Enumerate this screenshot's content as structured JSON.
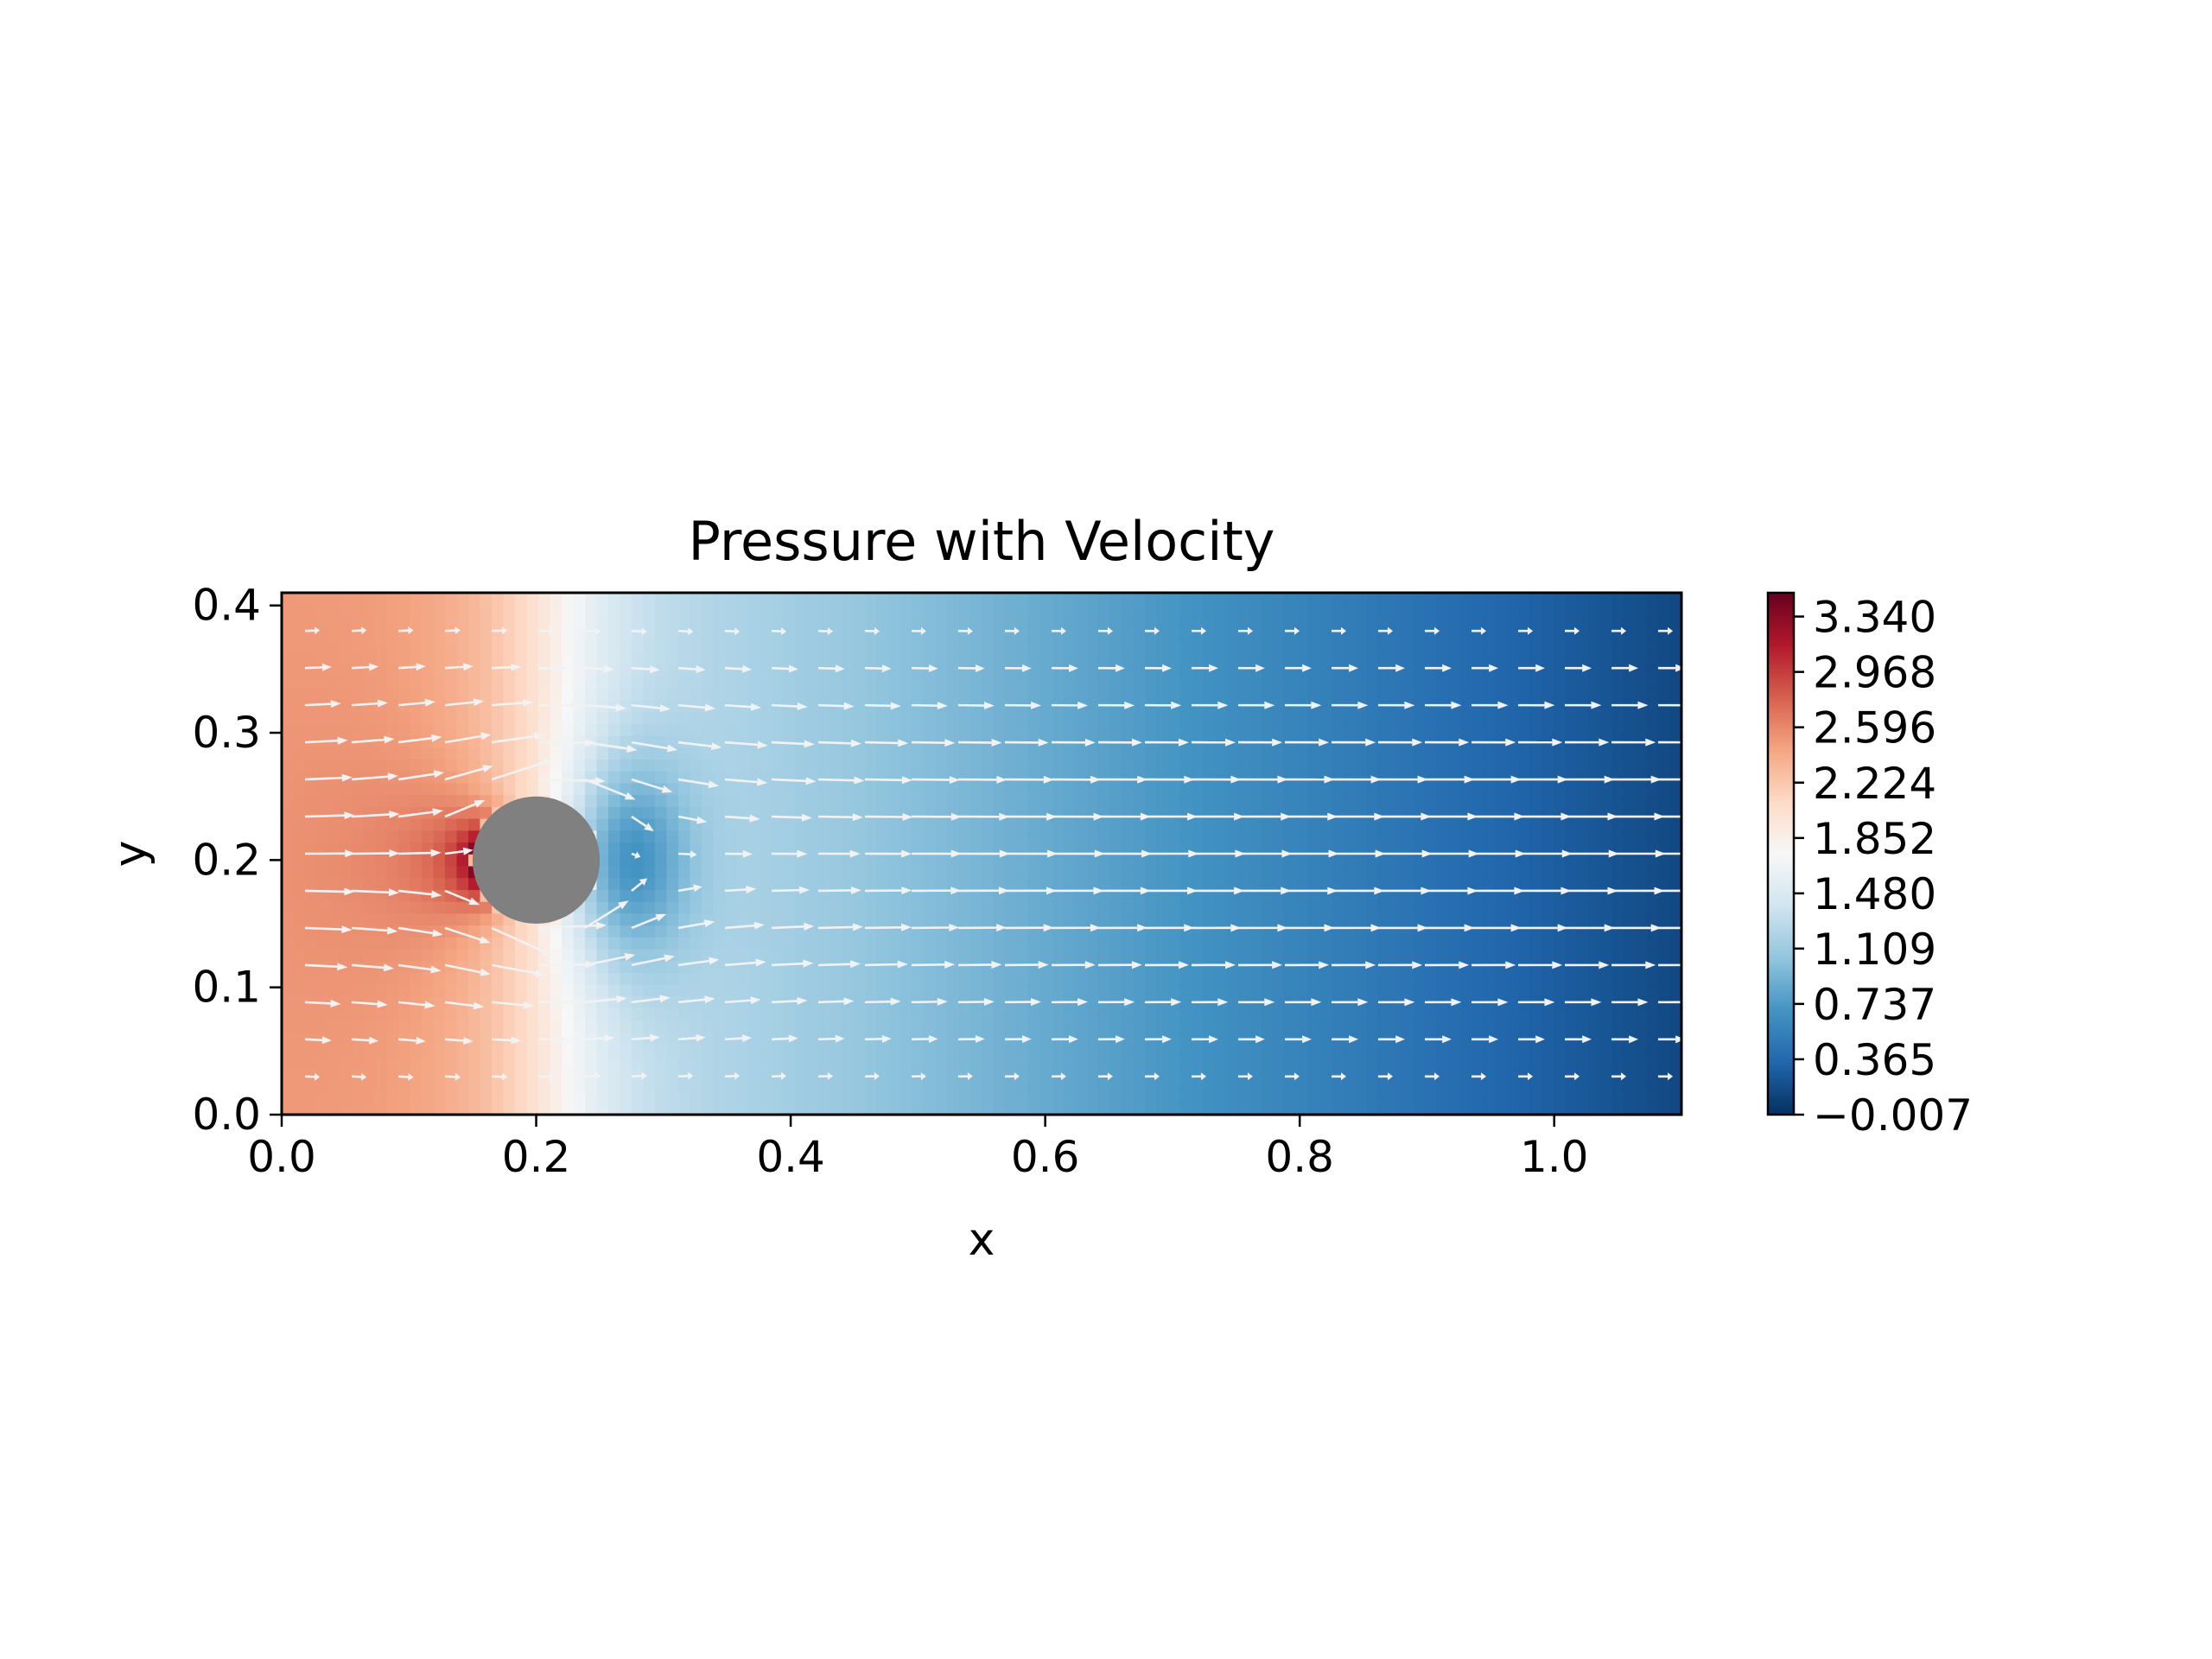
{
  "chart_data": {
    "type": "heatmap",
    "subtype": "pressure contour with velocity quiver",
    "title": "Pressure with Velocity",
    "xlabel": "x",
    "ylabel": "y",
    "xlim": [
      0.0,
      1.1
    ],
    "ylim": [
      0.0,
      0.41
    ],
    "x_ticks": [
      0.0,
      0.2,
      0.4,
      0.6,
      0.8,
      1.0
    ],
    "x_tick_labels": [
      "0.0",
      "0.2",
      "0.4",
      "0.6",
      "0.8",
      "1.0"
    ],
    "y_ticks": [
      0.0,
      0.1,
      0.2,
      0.3,
      0.4
    ],
    "y_tick_labels": [
      "0.0",
      "0.1",
      "0.2",
      "0.3",
      "0.4"
    ],
    "grid": false,
    "obstacle": {
      "shape": "circle",
      "center": [
        0.2,
        0.2
      ],
      "radius": 0.05,
      "color": "#808080"
    },
    "field": {
      "colormap": "RdBu_r",
      "range": [
        -0.007,
        3.5
      ],
      "inlet_pressure": 2.5,
      "stagnation_peak": 3.45,
      "wake_min": 0.55,
      "outlet_pressure": 0.0
    },
    "colorbar": {
      "ticks": [
        3.34,
        2.968,
        2.596,
        2.224,
        1.852,
        1.48,
        1.109,
        0.737,
        0.365,
        -0.007
      ],
      "tick_labels": [
        "3.340",
        "2.968",
        "2.596",
        "2.224",
        "1.852",
        "1.480",
        "1.109",
        "0.737",
        "0.365",
        "−0.007"
      ]
    },
    "quiver": {
      "arrow_color": "#f2f2f2",
      "nx": 30,
      "ny": 13,
      "inlet_profile": "parabolic",
      "max_velocity": 1.5
    }
  }
}
